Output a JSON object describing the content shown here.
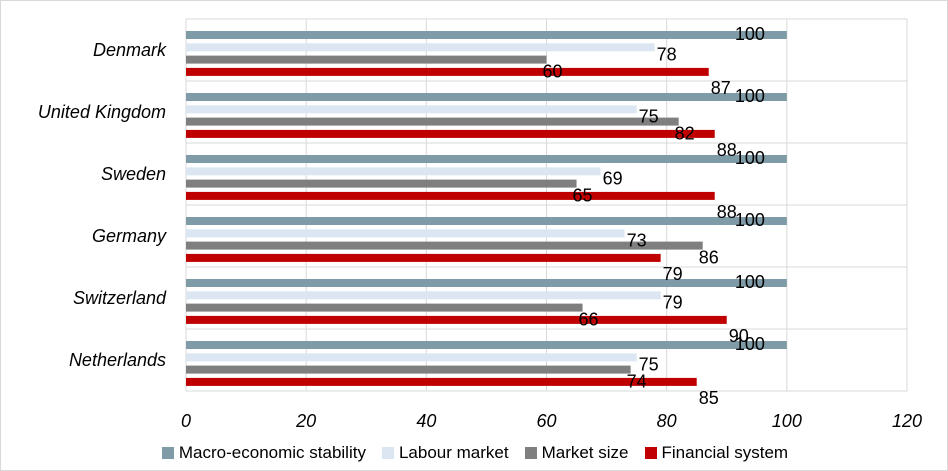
{
  "chart_data": {
    "type": "bar",
    "orientation": "horizontal",
    "categories": [
      "Denmark",
      "United Kingdom",
      "Sweden",
      "Germany",
      "Switzerland",
      "Netherlands"
    ],
    "series": [
      {
        "name": "Macro-economic stability",
        "color": "#7f9ba7",
        "values": [
          100,
          100,
          100,
          100,
          100,
          100
        ]
      },
      {
        "name": "Labour market",
        "color": "#dce6f2",
        "values": [
          78,
          75,
          69,
          73,
          79,
          75
        ]
      },
      {
        "name": "Market size",
        "color": "#7f7f7f",
        "values": [
          60,
          82,
          65,
          86,
          66,
          74
        ]
      },
      {
        "name": "Financial system",
        "color": "#c00000",
        "values": [
          87,
          88,
          88,
          79,
          90,
          85
        ]
      }
    ],
    "xlim": [
      0,
      120
    ],
    "xticks": [
      "0",
      "20",
      "40",
      "60",
      "80",
      "100",
      "120"
    ],
    "grid": true,
    "legend_position": "bottom",
    "title": "",
    "xlabel": "",
    "ylabel": ""
  }
}
